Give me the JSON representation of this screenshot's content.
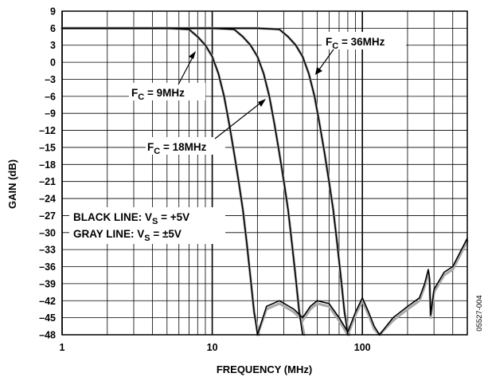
{
  "chart_data": {
    "type": "line",
    "xlabel": "FREQUENCY (MHz)",
    "ylabel": "GAIN (dB)",
    "xscale": "log",
    "xlim": [
      1,
      500
    ],
    "ylim": [
      -48,
      9
    ],
    "xticks": [
      {
        "value": 1,
        "label": "1"
      },
      {
        "value": 10,
        "label": "10"
      },
      {
        "value": 100,
        "label": "100"
      }
    ],
    "yticks": [
      9,
      6,
      3,
      0,
      -3,
      -6,
      -9,
      -12,
      -15,
      -18,
      -21,
      -24,
      -27,
      -30,
      -33,
      -36,
      -39,
      -42,
      -45,
      -48
    ],
    "ytick_labels": [
      "9",
      "6",
      "3",
      "0",
      "–3",
      "–6",
      "–9",
      "–12",
      "–15",
      "–18",
      "–21",
      "–24",
      "–27",
      "–30",
      "–33",
      "–36",
      "–39",
      "–42",
      "–45",
      "–48"
    ],
    "grid": true,
    "series": [
      {
        "name": "BLACK LINE: VS = +5V",
        "color": "#000000",
        "curve": "F = 9MHz",
        "x": [
          1,
          5,
          7,
          8,
          9,
          10,
          11,
          12,
          13,
          14,
          15,
          16,
          17,
          18,
          19,
          20
        ],
        "y": [
          6,
          6,
          5.8,
          4.5,
          3.0,
          1.0,
          -2,
          -6,
          -11,
          -16,
          -21,
          -26,
          -32,
          -38,
          -44,
          -48
        ]
      },
      {
        "name": "GRAY LINE: VS = ±5V",
        "color": "#aaaaaa",
        "curve": "F = 9MHz",
        "x": [
          1,
          5,
          7,
          8,
          9,
          10,
          11,
          12,
          13,
          14,
          15,
          16,
          17,
          18,
          19,
          20.5
        ],
        "y": [
          6,
          6,
          5.8,
          4.5,
          3.0,
          1.0,
          -2,
          -6,
          -11,
          -16,
          -21,
          -26,
          -32,
          -38,
          -44,
          -48
        ]
      },
      {
        "name": "BLACK LINE: VS = +5V",
        "color": "#000000",
        "curve": "F = 18MHz",
        "x": [
          1,
          10,
          14,
          16,
          18,
          20,
          22,
          24,
          26,
          28,
          30,
          32,
          34,
          36,
          38,
          40
        ],
        "y": [
          6,
          6,
          5.8,
          4.5,
          3.0,
          1.0,
          -2,
          -6,
          -11,
          -16,
          -21,
          -26,
          -32,
          -38,
          -44,
          -48
        ]
      },
      {
        "name": "GRAY LINE: VS = ±5V",
        "color": "#aaaaaa",
        "curve": "F = 18MHz",
        "x": [
          1,
          10,
          14,
          16,
          18,
          20,
          22,
          24,
          26,
          28,
          30,
          32,
          34,
          36,
          38,
          41
        ],
        "y": [
          6,
          6,
          5.8,
          4.5,
          3.0,
          1.0,
          -2,
          -6,
          -11,
          -16,
          -21,
          -26,
          -32,
          -38,
          -44,
          -48
        ]
      },
      {
        "name": "BLACK LINE: VS = +5V",
        "color": "#000000",
        "curve": "F = 36MHz",
        "x": [
          1,
          20,
          28,
          32,
          36,
          40,
          44,
          48,
          52,
          56,
          60,
          64,
          68,
          72,
          76,
          80
        ],
        "y": [
          6,
          6,
          5.8,
          4.5,
          3.0,
          1.0,
          -2,
          -6,
          -11,
          -16,
          -21,
          -26,
          -32,
          -38,
          -44,
          -48
        ]
      },
      {
        "name": "GRAY LINE: VS = ±5V",
        "color": "#aaaaaa",
        "curve": "F = 36MHz",
        "x": [
          1,
          20,
          28,
          32,
          36,
          40,
          44,
          48,
          52,
          56,
          60,
          64,
          68,
          72,
          76,
          82
        ],
        "y": [
          6,
          6,
          5.8,
          4.5,
          3.0,
          1.0,
          -2,
          -6,
          -11,
          -16,
          -21,
          -26,
          -32,
          -38,
          -44,
          -48
        ]
      },
      {
        "name": "BLACK LINE: VS = +5V",
        "color": "#000000",
        "curve": "stopband",
        "x": [
          20,
          23,
          28,
          35,
          40,
          45,
          50,
          60,
          70,
          80,
          90,
          100,
          110,
          120,
          130,
          160,
          200,
          240,
          260,
          275,
          280,
          285,
          300,
          350,
          400,
          500
        ],
        "y": [
          -48,
          -43,
          -42,
          -43.5,
          -45,
          -43,
          -42,
          -42.5,
          -45,
          -47.5,
          -44,
          -41.5,
          -44,
          -46.5,
          -48,
          -45,
          -43,
          -41.5,
          -39,
          -36.5,
          -38,
          -44.5,
          -40,
          -37,
          -36,
          -31
        ]
      },
      {
        "name": "GRAY LINE: VS = ±5V",
        "color": "#aaaaaa",
        "curve": "stopband",
        "x": [
          20,
          23,
          28,
          35,
          40,
          45,
          50,
          60,
          70,
          80,
          90,
          100,
          110,
          120,
          130,
          160,
          200,
          240,
          260,
          275,
          280,
          285,
          300,
          350,
          400,
          500
        ],
        "y": [
          -48,
          -43.5,
          -42.5,
          -44,
          -45.5,
          -43.5,
          -42.5,
          -43,
          -45.5,
          -48,
          -44.5,
          -42,
          -44.5,
          -47,
          -48,
          -45.5,
          -43.5,
          -42,
          -39.5,
          -37,
          -38.5,
          -45,
          -40.5,
          -37.5,
          -36.5,
          -31.5
        ]
      }
    ],
    "annotations": [
      {
        "main": "F",
        "sub": "C",
        "rest": " = 9MHz"
      },
      {
        "main": "F",
        "sub": "C",
        "rest": " = 18MHz"
      },
      {
        "main": "F",
        "sub": "C",
        "rest": " = 36MHz"
      }
    ],
    "legend_text": [
      {
        "main": "BLACK LINE: V",
        "sub": "S",
        "rest": " = +5V"
      },
      {
        "main": "GRAY LINE: V",
        "sub": "S",
        "rest": " = ±5V"
      }
    ],
    "figure_id": "05527-004"
  }
}
